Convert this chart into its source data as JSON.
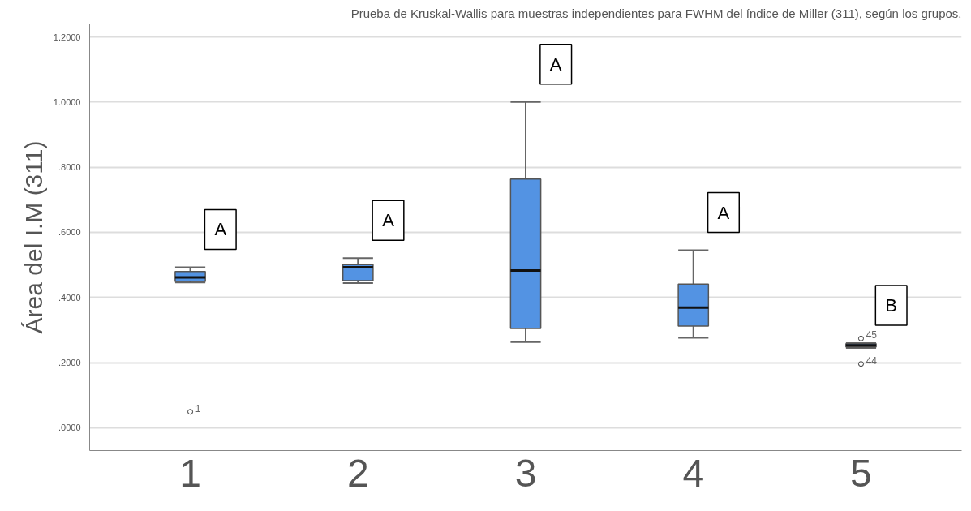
{
  "chart_data": {
    "type": "box",
    "title": "Prueba de Kruskal-Wallis para muestras independientes para FWHM del índice de Miller (311), según los grupos.",
    "ylabel": "Área del I.M (311)",
    "categories": [
      "1",
      "2",
      "3",
      "4",
      "5"
    ],
    "color": "#5393e3",
    "boxes": [
      {
        "low": 0.446,
        "q1": 0.449,
        "median": 0.462,
        "q3": 0.48,
        "high": 0.493,
        "outliers": [
          0.049
        ]
      },
      {
        "low": 0.444,
        "q1": 0.452,
        "median": 0.493,
        "q3": 0.501,
        "high": 0.521
      },
      {
        "low": 0.263,
        "q1": 0.305,
        "median": 0.483,
        "q3": 0.764,
        "high": 1.0
      },
      {
        "low": 0.276,
        "q1": 0.312,
        "median": 0.369,
        "q3": 0.441,
        "high": 0.545
      },
      {
        "low": 0.245,
        "q1": 0.248,
        "median": 0.253,
        "q3": 0.258,
        "high": 0.26,
        "outliers": [
          0.274,
          0.196
        ]
      }
    ],
    "ylim": [
      -0.07,
      1.24
    ],
    "yticks": [
      {
        "value": 0,
        "label": ".0000"
      },
      {
        "value": 0.2,
        "label": ".2000"
      },
      {
        "value": 0.4,
        "label": ".4000"
      },
      {
        "value": 0.6,
        "label": ".6000"
      },
      {
        "value": 0.8,
        "label": ".8000"
      },
      {
        "value": 1.0,
        "label": "1.0000"
      },
      {
        "value": 1.2,
        "label": "1.2000"
      }
    ],
    "grid": "y",
    "annotations": [
      "A",
      "A",
      "A",
      "A",
      "B",
      "1",
      "45",
      "44"
    ]
  }
}
